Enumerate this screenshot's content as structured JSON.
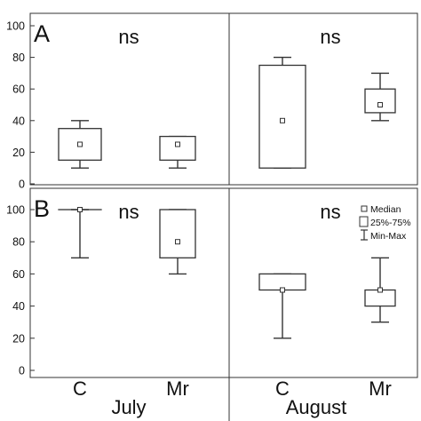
{
  "chart_data": {
    "type": "box",
    "panels": [
      {
        "label": "A",
        "groups": [
          {
            "month": "July",
            "significance": "ns",
            "boxes": [
              {
                "category": "C",
                "min": 10,
                "q1": 15,
                "median": 25,
                "q3": 35,
                "max": 40
              },
              {
                "category": "Mr",
                "min": 10,
                "q1": 15,
                "median": 25,
                "q3": 30,
                "max": 30
              }
            ]
          },
          {
            "month": "August",
            "significance": "ns",
            "boxes": [
              {
                "category": "C",
                "min": 10,
                "q1": 10,
                "median": 40,
                "q3": 75,
                "max": 80
              },
              {
                "category": "Mr",
                "min": 40,
                "q1": 45,
                "median": 50,
                "q3": 60,
                "max": 70
              }
            ]
          }
        ]
      },
      {
        "label": "B",
        "groups": [
          {
            "month": "July",
            "significance": "ns",
            "boxes": [
              {
                "category": "C",
                "min": 70,
                "q1": 100,
                "median": 100,
                "q3": 100,
                "max": 100
              },
              {
                "category": "Mr",
                "min": 60,
                "q1": 70,
                "median": 80,
                "q3": 100,
                "max": 100
              }
            ]
          },
          {
            "month": "August",
            "significance": "ns",
            "boxes": [
              {
                "category": "C",
                "min": 20,
                "q1": 50,
                "median": 50,
                "q3": 60,
                "max": 60
              },
              {
                "category": "Mr",
                "min": 30,
                "q1": 40,
                "median": 50,
                "q3": 50,
                "max": 70
              }
            ]
          }
        ]
      }
    ],
    "ylim": [
      0,
      100
    ],
    "yticks": [
      "0",
      "20",
      "40",
      "60",
      "80",
      "100"
    ],
    "categories": [
      "C",
      "Mr",
      "C",
      "Mr"
    ],
    "months": [
      "July",
      "August"
    ],
    "legend": {
      "position": "top-right of panel B",
      "entries": [
        "Median",
        "25%-75%",
        "Min-Max"
      ]
    }
  }
}
